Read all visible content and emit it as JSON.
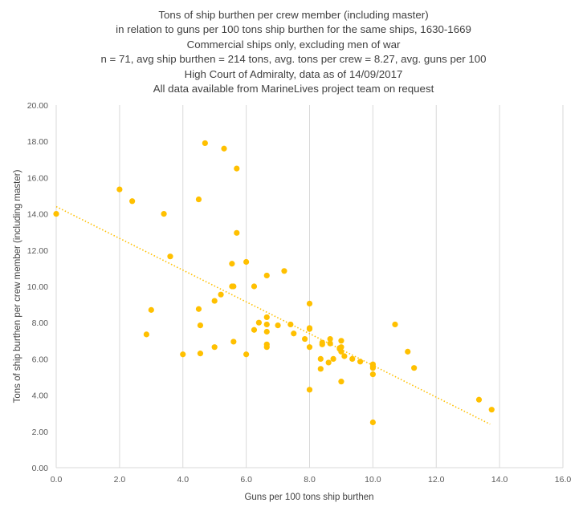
{
  "chart_data": {
    "type": "scatter",
    "title_lines": [
      "Tons of ship burthen per crew member (including master)",
      "in relation to guns per 100 tons ship burthen for the same ships, 1630-1669",
      "Commercial ships only, excluding men of war",
      "n = 71, avg ship burthen = 214 tons, avg. tons per crew = 8.27, avg. guns per 100",
      "High Court of Admiralty, data as of 14/09/2017",
      "All data available from MarineLives project team on request"
    ],
    "xlabel": "Guns per 100 tons ship burthen",
    "ylabel": "Tons of ship burthen per crew member (including master)",
    "xlim": [
      0,
      16
    ],
    "ylim": [
      0,
      20
    ],
    "x_ticks": [
      "0.0",
      "2.0",
      "4.0",
      "6.0",
      "8.0",
      "10.0",
      "12.0",
      "14.0",
      "16.0"
    ],
    "y_ticks": [
      "0.00",
      "2.00",
      "4.00",
      "6.00",
      "8.00",
      "10.00",
      "12.00",
      "14.00",
      "16.00",
      "18.00",
      "20.00"
    ],
    "grid": "vertical",
    "legend": "none",
    "marker_color": "#FFC000",
    "trendline": {
      "type": "linear",
      "style": "dotted",
      "from": [
        0,
        14.4
      ],
      "to": [
        13.7,
        2.4
      ]
    },
    "points": [
      [
        0.0,
        14.0
      ],
      [
        2.0,
        15.35
      ],
      [
        2.4,
        14.7
      ],
      [
        3.4,
        14.0
      ],
      [
        3.6,
        11.65
      ],
      [
        3.0,
        8.7
      ],
      [
        2.85,
        7.35
      ],
      [
        4.0,
        6.25
      ],
      [
        4.5,
        14.8
      ],
      [
        4.7,
        17.9
      ],
      [
        5.3,
        17.6
      ],
      [
        5.7,
        16.5
      ],
      [
        5.7,
        12.95
      ],
      [
        4.5,
        8.75
      ],
      [
        4.55,
        7.85
      ],
      [
        4.55,
        6.3
      ],
      [
        5.0,
        6.65
      ],
      [
        5.0,
        9.2
      ],
      [
        5.2,
        9.55
      ],
      [
        5.55,
        10.0
      ],
      [
        5.55,
        11.25
      ],
      [
        5.6,
        10.0
      ],
      [
        5.6,
        6.95
      ],
      [
        6.0,
        6.25
      ],
      [
        6.0,
        11.35
      ],
      [
        6.25,
        10.0
      ],
      [
        6.25,
        7.6
      ],
      [
        6.4,
        8.0
      ],
      [
        6.65,
        10.6
      ],
      [
        6.65,
        8.3
      ],
      [
        6.65,
        7.9
      ],
      [
        6.65,
        7.5
      ],
      [
        6.65,
        6.8
      ],
      [
        6.65,
        6.65
      ],
      [
        7.0,
        7.85
      ],
      [
        7.2,
        10.85
      ],
      [
        7.4,
        7.9
      ],
      [
        7.5,
        7.4
      ],
      [
        7.85,
        7.1
      ],
      [
        8.0,
        9.05
      ],
      [
        8.0,
        7.65
      ],
      [
        8.0,
        7.7
      ],
      [
        8.0,
        6.65
      ],
      [
        8.0,
        4.3
      ],
      [
        8.35,
        6.0
      ],
      [
        8.35,
        5.45
      ],
      [
        8.4,
        6.9
      ],
      [
        8.4,
        6.8
      ],
      [
        8.6,
        5.8
      ],
      [
        8.65,
        7.1
      ],
      [
        8.65,
        6.85
      ],
      [
        8.75,
        6.0
      ],
      [
        8.95,
        6.55
      ],
      [
        9.0,
        7.0
      ],
      [
        9.0,
        6.65
      ],
      [
        9.0,
        6.4
      ],
      [
        9.0,
        4.75
      ],
      [
        9.1,
        6.15
      ],
      [
        9.35,
        6.0
      ],
      [
        9.6,
        5.85
      ],
      [
        10.0,
        5.7
      ],
      [
        10.0,
        5.5
      ],
      [
        10.0,
        5.15
      ],
      [
        10.0,
        2.5
      ],
      [
        10.7,
        7.9
      ],
      [
        11.1,
        6.4
      ],
      [
        11.3,
        5.5
      ],
      [
        13.35,
        3.75
      ],
      [
        13.75,
        3.2
      ],
      [
        8.95,
        6.6
      ],
      [
        10.0,
        5.6
      ]
    ]
  }
}
